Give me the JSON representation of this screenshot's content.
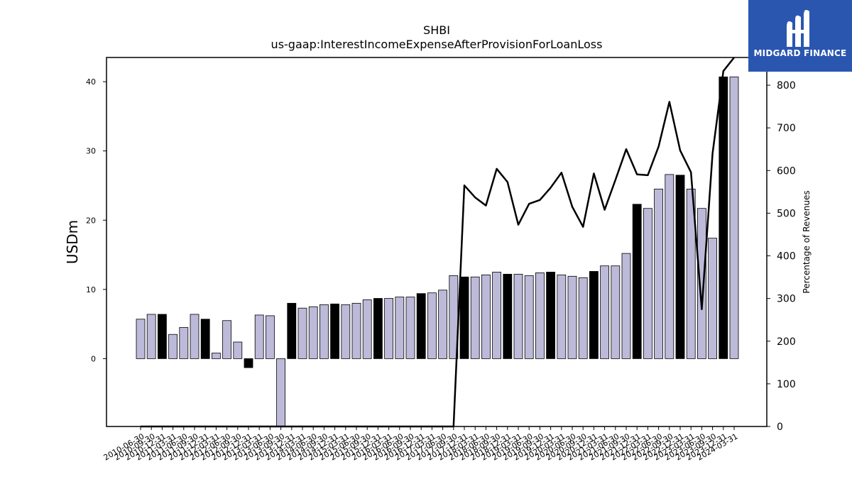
{
  "logo": {
    "text": "MIDGARD FINANCE",
    "icon": "midgard-logo-icon"
  },
  "chart_data": {
    "type": "bar",
    "title": "SHBI",
    "subtitle": "us-gaap:InterestIncomeExpenseAfterProvisionForLoanLoss",
    "ylabel": "USDm",
    "y2label": "Percentage of Revenues",
    "ylim": [
      -9.8,
      43.5
    ],
    "y2lim": [
      0,
      865
    ],
    "yticks": [
      0,
      10,
      20,
      30,
      40
    ],
    "y2ticks": [
      0,
      100,
      200,
      300,
      400,
      500,
      600,
      700,
      800
    ],
    "colors": {
      "bar_default": "#bcb9d9",
      "bar_highlight": "#000000",
      "line": "#000000"
    },
    "categories": [
      "2010-06-30",
      "2010-09-30",
      "2010-12-31",
      "2011-03-31",
      "2011-06-30",
      "2011-09-30",
      "2011-12-31",
      "2012-03-31",
      "2012-06-30",
      "2012-09-30",
      "2012-12-31",
      "2013-03-31",
      "2013-06-30",
      "2013-09-30",
      "2013-12-31",
      "2014-03-31",
      "2014-06-30",
      "2014-09-30",
      "2014-12-31",
      "2015-03-31",
      "2015-06-30",
      "2015-09-30",
      "2015-12-31",
      "2016-03-31",
      "2016-06-30",
      "2016-09-30",
      "2016-12-31",
      "2017-03-31",
      "2017-06-30",
      "2017-09-30",
      "2017-12-31",
      "2018-03-31",
      "2018-06-30",
      "2018-09-30",
      "2018-12-31",
      "2019-03-31",
      "2019-06-30",
      "2019-09-30",
      "2019-12-31",
      "2020-03-31",
      "2020-06-30",
      "2020-09-30",
      "2020-12-31",
      "2021-03-31",
      "2021-06-30",
      "2021-09-30",
      "2021-12-31",
      "2022-03-31",
      "2022-06-30",
      "2022-09-30",
      "2022-12-31",
      "2023-03-31",
      "2023-06-30",
      "2023-09-30",
      "2023-12-31",
      "2024-03-31"
    ],
    "series": [
      {
        "kind": "bar",
        "values": [
          5.7,
          6.4,
          6.4,
          3.5,
          4.5,
          6.4,
          5.7,
          0.8,
          5.5,
          2.4,
          -1.3,
          6.3,
          6.2,
          -9.8,
          8.0,
          7.3,
          7.5,
          7.8,
          7.9,
          7.8,
          8.0,
          8.5,
          8.7,
          8.7,
          8.9,
          8.9,
          9.4,
          9.5,
          9.9,
          12.0,
          11.8,
          11.8,
          12.1,
          12.5,
          12.2,
          12.2,
          12.0,
          12.4,
          12.5,
          12.1,
          11.9,
          11.7,
          12.6,
          13.4,
          13.4,
          15.2,
          22.3,
          21.7,
          24.5,
          26.6,
          26.5,
          24.5,
          21.7,
          17.4,
          40.7,
          40.7
        ],
        "highlight": [
          false,
          false,
          true,
          false,
          false,
          false,
          true,
          false,
          false,
          false,
          true,
          false,
          false,
          false,
          true,
          false,
          false,
          false,
          true,
          false,
          false,
          false,
          true,
          false,
          false,
          false,
          true,
          false,
          false,
          false,
          true,
          false,
          false,
          false,
          true,
          false,
          false,
          false,
          true,
          false,
          false,
          false,
          true,
          false,
          false,
          false,
          true,
          false,
          false,
          false,
          true,
          false,
          false,
          false,
          true,
          false
        ]
      },
      {
        "kind": "line",
        "axis": "right",
        "values": [
          0,
          0,
          0,
          0,
          0,
          0,
          0,
          0,
          0,
          0,
          0,
          0,
          0,
          0,
          0,
          0,
          0,
          0,
          0,
          0,
          0,
          0,
          0,
          0,
          0,
          0,
          0,
          0,
          0,
          0,
          565,
          537,
          518,
          604,
          573,
          473,
          522,
          531,
          560,
          595,
          515,
          468,
          593,
          508,
          578,
          650,
          591,
          589,
          656,
          761,
          647,
          596,
          275,
          640,
          833,
          865
        ]
      }
    ]
  }
}
